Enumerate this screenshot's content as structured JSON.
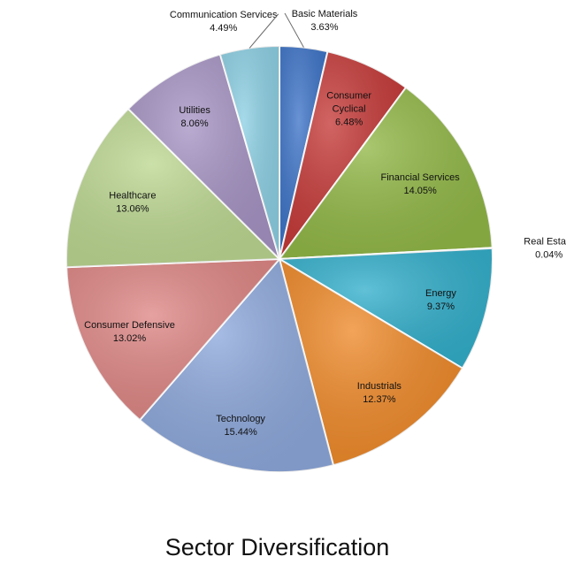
{
  "chart_data": {
    "type": "pie",
    "title": "Sector Diversification",
    "slices": [
      {
        "label": "Basic Materials",
        "value": 3.63,
        "display": "3.63%",
        "color": "#3E74C8"
      },
      {
        "label": "Consumer Cyclical",
        "value": 6.48,
        "display": "6.48%",
        "color": "#C53A38"
      },
      {
        "label": "Financial Services",
        "value": 14.05,
        "display": "14.05%",
        "color": "#92B847"
      },
      {
        "label": "Real Estate",
        "value": 0.04,
        "display": "0.04%",
        "color": "#7F62A3"
      },
      {
        "label": "Energy",
        "value": 9.37,
        "display": "9.37%",
        "color": "#33AFCB"
      },
      {
        "label": "Industrials",
        "value": 12.37,
        "display": "12.37%",
        "color": "#EF8A2A"
      },
      {
        "label": "Technology",
        "value": 15.44,
        "display": "15.44%",
        "color": "#8EA9DC"
      },
      {
        "label": "Consumer Defensive",
        "value": 13.02,
        "display": "13.02%",
        "color": "#DE8785"
      },
      {
        "label": "Healthcare",
        "value": 13.06,
        "display": "13.06%",
        "color": "#BDD892"
      },
      {
        "label": "Utilities",
        "value": 8.06,
        "display": "8.06%",
        "color": "#A694C4"
      },
      {
        "label": "Communication Services",
        "value": 4.49,
        "display": "4.49%",
        "color": "#8DD0E4"
      }
    ]
  }
}
